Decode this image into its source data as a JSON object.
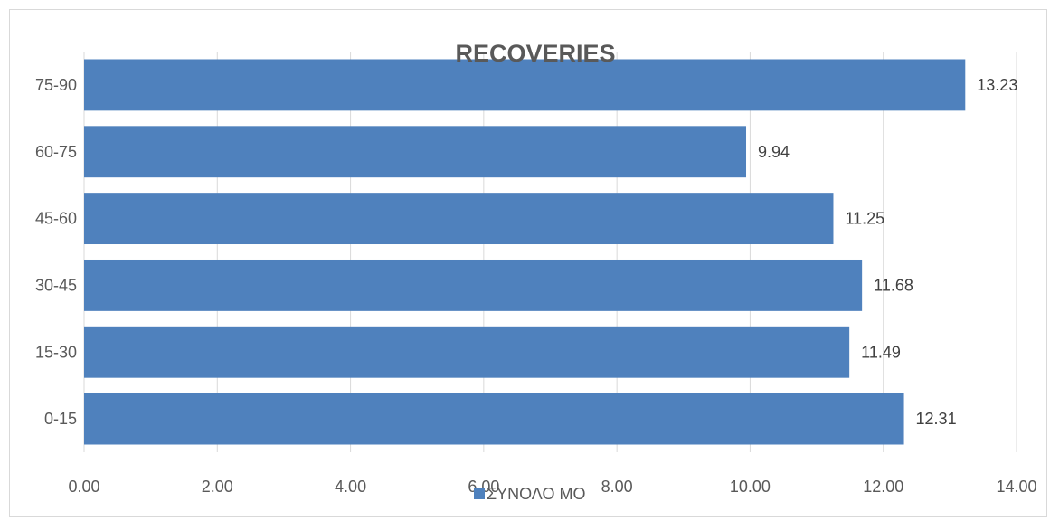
{
  "chart_data": {
    "type": "bar",
    "orientation": "horizontal",
    "title": "RECOVERIES",
    "categories": [
      "0-15",
      "15-30",
      "30-45",
      "45-60",
      "60-75",
      "75-90"
    ],
    "series": [
      {
        "name": "ΣΥΝΟΛΟ ΜΟ",
        "values": [
          12.31,
          11.49,
          11.68,
          11.25,
          9.94,
          13.23
        ],
        "color": "#4f81bd"
      }
    ],
    "data_labels": [
      "12.31",
      "11.49",
      "11.68",
      "11.25",
      "9.94",
      "13.23"
    ],
    "x_ticks": [
      "0.00",
      "2.00",
      "4.00",
      "6.00",
      "8.00",
      "10.00",
      "12.00",
      "14.00"
    ],
    "xlim": [
      0,
      14
    ],
    "xlabel": "",
    "ylabel": "",
    "grid": true,
    "legend_position": "bottom"
  }
}
